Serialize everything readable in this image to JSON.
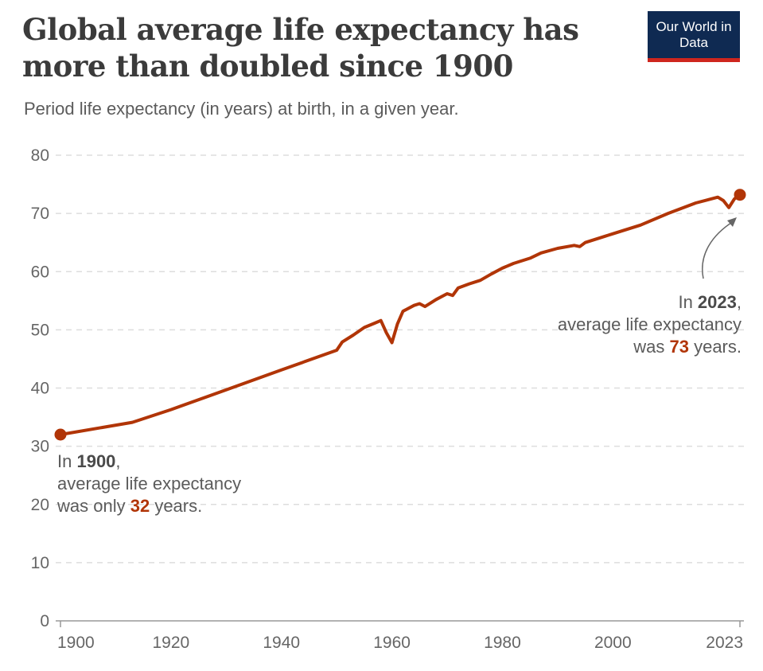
{
  "header": {
    "title": "Global average life expectancy has more than doubled since 1900",
    "subtitle": "Period life expectancy (in years) at birth, in a given year.",
    "logo": "Our World in Data"
  },
  "colors": {
    "line": "#b13507",
    "logo_bg": "#0f2a52",
    "logo_accent": "#ce261e",
    "grid": "#dddddd"
  },
  "annotations": {
    "start": {
      "prefix": "In ",
      "year": "1900",
      ",": ",",
      "line2": "average life expectancy",
      "line3a": "was only ",
      "value": "32",
      "line3b": " years."
    },
    "end": {
      "prefix": "In ",
      "year": "2023",
      "line2": "average life expectancy",
      "line3a": "was ",
      "value": "73",
      "line3b": " years."
    }
  },
  "chart_data": {
    "type": "line",
    "title": "Global average life expectancy has more than doubled since 1900",
    "subtitle": "Period life expectancy (in years) at birth, in a given year.",
    "xlim": [
      1900,
      2023
    ],
    "ylim": [
      0,
      80
    ],
    "x_ticks": [
      "1900",
      "1920",
      "1940",
      "1960",
      "1980",
      "2000",
      "2023"
    ],
    "y_ticks": [
      "0",
      "10",
      "20",
      "30",
      "40",
      "50",
      "60",
      "70",
      "80"
    ],
    "grid": "horizontal dashed",
    "series": [
      {
        "x": [
          1900,
          1913,
          1920,
          1930,
          1940,
          1950,
          1951,
          1953,
          1955,
          1957,
          1958,
          1959,
          1960,
          1961,
          1962,
          1964,
          1965,
          1966,
          1968,
          1970,
          1971,
          1972,
          1974,
          1976,
          1978,
          1980,
          1982,
          1985,
          1987,
          1990,
          1993,
          1994,
          1995,
          2000,
          2005,
          2010,
          2015,
          2019,
          2020,
          2021,
          2022,
          2023
        ],
        "values": [
          32,
          34.1,
          36.3,
          39.7,
          43.1,
          46.5,
          47.9,
          49.1,
          50.4,
          51.2,
          51.6,
          49.5,
          47.8,
          51,
          53.2,
          54.2,
          54.5,
          54,
          55.2,
          56.2,
          55.9,
          57.2,
          57.9,
          58.5,
          59.6,
          60.6,
          61.4,
          62.3,
          63.2,
          64,
          64.5,
          64.3,
          65,
          66.5,
          68,
          70,
          71.8,
          72.8,
          72.2,
          71,
          72.5,
          73.2
        ]
      }
    ],
    "highlight_points": [
      {
        "x": 1900,
        "y": 32
      },
      {
        "x": 2023,
        "y": 73.2
      }
    ]
  }
}
